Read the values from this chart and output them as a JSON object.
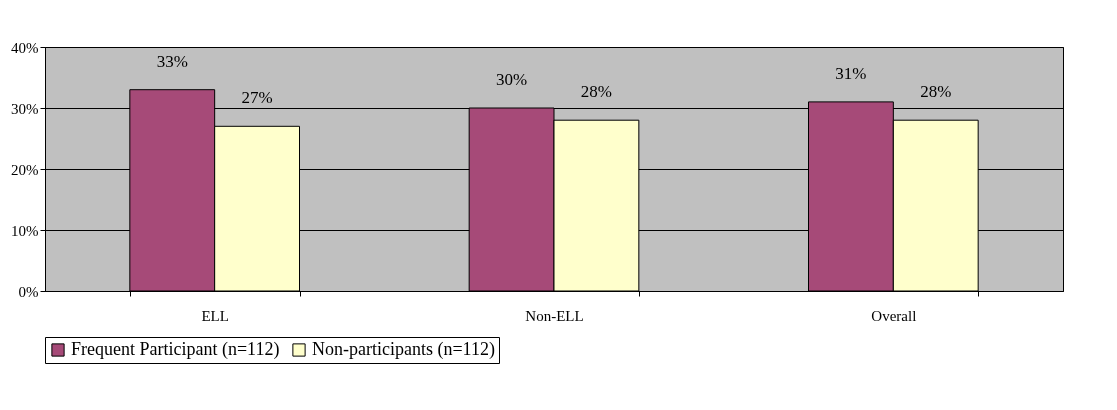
{
  "chart_data": {
    "type": "bar",
    "categories": [
      "ELL",
      "Non-ELL",
      "Overall"
    ],
    "series": [
      {
        "name": "Frequent Participant (n=112)",
        "color": "#a64a78",
        "values": [
          33,
          30,
          31
        ],
        "value_labels": [
          "33%",
          "30%",
          "31%"
        ]
      },
      {
        "name": "Non-participants (n=112)",
        "color": "#ffffcc",
        "values": [
          27,
          28,
          28
        ],
        "value_labels": [
          "27%",
          "28%",
          "28%"
        ]
      }
    ],
    "ylim": [
      0,
      40
    ],
    "yticks": [
      {
        "value": 0,
        "label": "0%"
      },
      {
        "value": 10,
        "label": "10%"
      },
      {
        "value": 20,
        "label": "20%"
      },
      {
        "value": 30,
        "label": "30%"
      },
      {
        "value": 40,
        "label": "40%"
      }
    ],
    "grid": "y",
    "legend": "bottom"
  }
}
